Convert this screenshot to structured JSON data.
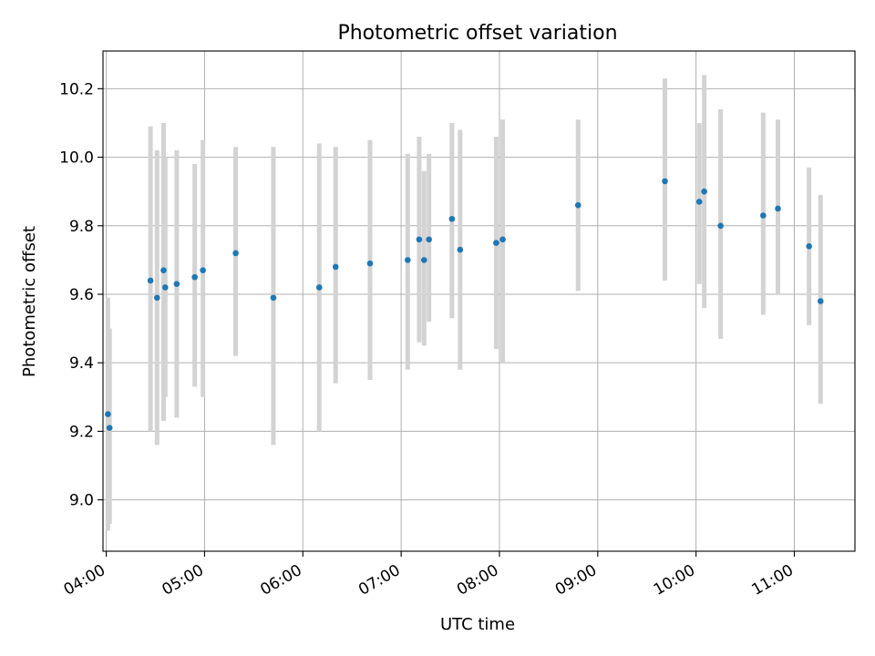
{
  "chart_data": {
    "type": "scatter",
    "title": "Photometric offset variation",
    "xlabel": "UTC time",
    "ylabel": "Photometric offset",
    "xlim": [
      "03:58",
      "11:37"
    ],
    "ylim": [
      8.85,
      10.31
    ],
    "x_ticks": [
      "04:00",
      "05:00",
      "06:00",
      "07:00",
      "08:00",
      "09:00",
      "10:00",
      "11:00"
    ],
    "y_ticks": [
      9.0,
      9.2,
      9.4,
      9.6,
      9.8,
      10.0,
      10.2
    ],
    "grid": true,
    "colors": {
      "point": "#1f77b4",
      "errorbar": "#d3d3d3",
      "grid": "#b0b0b0"
    },
    "points": [
      {
        "x": "04:01",
        "y": 9.25,
        "lo": 8.91,
        "hi": 9.59
      },
      {
        "x": "04:02",
        "y": 9.21,
        "lo": 8.93,
        "hi": 9.5
      },
      {
        "x": "04:27",
        "y": 9.64,
        "lo": 9.2,
        "hi": 10.09
      },
      {
        "x": "04:31",
        "y": 9.59,
        "lo": 9.16,
        "hi": 10.02
      },
      {
        "x": "04:35",
        "y": 9.67,
        "lo": 9.23,
        "hi": 10.1
      },
      {
        "x": "04:36",
        "y": 9.62,
        "lo": 9.3,
        "hi": 10.0
      },
      {
        "x": "04:43",
        "y": 9.63,
        "lo": 9.24,
        "hi": 10.02
      },
      {
        "x": "04:54",
        "y": 9.65,
        "lo": 9.33,
        "hi": 9.98
      },
      {
        "x": "04:59",
        "y": 9.67,
        "lo": 9.3,
        "hi": 10.05
      },
      {
        "x": "05:19",
        "y": 9.72,
        "lo": 9.42,
        "hi": 10.03
      },
      {
        "x": "05:42",
        "y": 9.59,
        "lo": 9.16,
        "hi": 10.03
      },
      {
        "x": "06:10",
        "y": 9.62,
        "lo": 9.2,
        "hi": 10.04
      },
      {
        "x": "06:20",
        "y": 9.68,
        "lo": 9.34,
        "hi": 10.03
      },
      {
        "x": "06:41",
        "y": 9.69,
        "lo": 9.35,
        "hi": 10.05
      },
      {
        "x": "07:04",
        "y": 9.7,
        "lo": 9.38,
        "hi": 10.01
      },
      {
        "x": "07:11",
        "y": 9.76,
        "lo": 9.46,
        "hi": 10.06
      },
      {
        "x": "07:14",
        "y": 9.7,
        "lo": 9.45,
        "hi": 9.96
      },
      {
        "x": "07:17",
        "y": 9.76,
        "lo": 9.52,
        "hi": 10.01
      },
      {
        "x": "07:31",
        "y": 9.82,
        "lo": 9.53,
        "hi": 10.1
      },
      {
        "x": "07:36",
        "y": 9.73,
        "lo": 9.38,
        "hi": 10.08
      },
      {
        "x": "07:58",
        "y": 9.75,
        "lo": 9.44,
        "hi": 10.06
      },
      {
        "x": "08:02",
        "y": 9.76,
        "lo": 9.4,
        "hi": 10.11
      },
      {
        "x": "08:48",
        "y": 9.86,
        "lo": 9.61,
        "hi": 10.11
      },
      {
        "x": "09:41",
        "y": 9.93,
        "lo": 9.64,
        "hi": 10.23
      },
      {
        "x": "10:02",
        "y": 9.87,
        "lo": 9.63,
        "hi": 10.1
      },
      {
        "x": "10:05",
        "y": 9.9,
        "lo": 9.56,
        "hi": 10.24
      },
      {
        "x": "10:15",
        "y": 9.8,
        "lo": 9.47,
        "hi": 10.14
      },
      {
        "x": "10:41",
        "y": 9.83,
        "lo": 9.54,
        "hi": 10.13
      },
      {
        "x": "10:50",
        "y": 9.85,
        "lo": 9.6,
        "hi": 10.11
      },
      {
        "x": "11:09",
        "y": 9.74,
        "lo": 9.51,
        "hi": 9.97
      },
      {
        "x": "11:16",
        "y": 9.58,
        "lo": 9.28,
        "hi": 9.89
      }
    ]
  }
}
